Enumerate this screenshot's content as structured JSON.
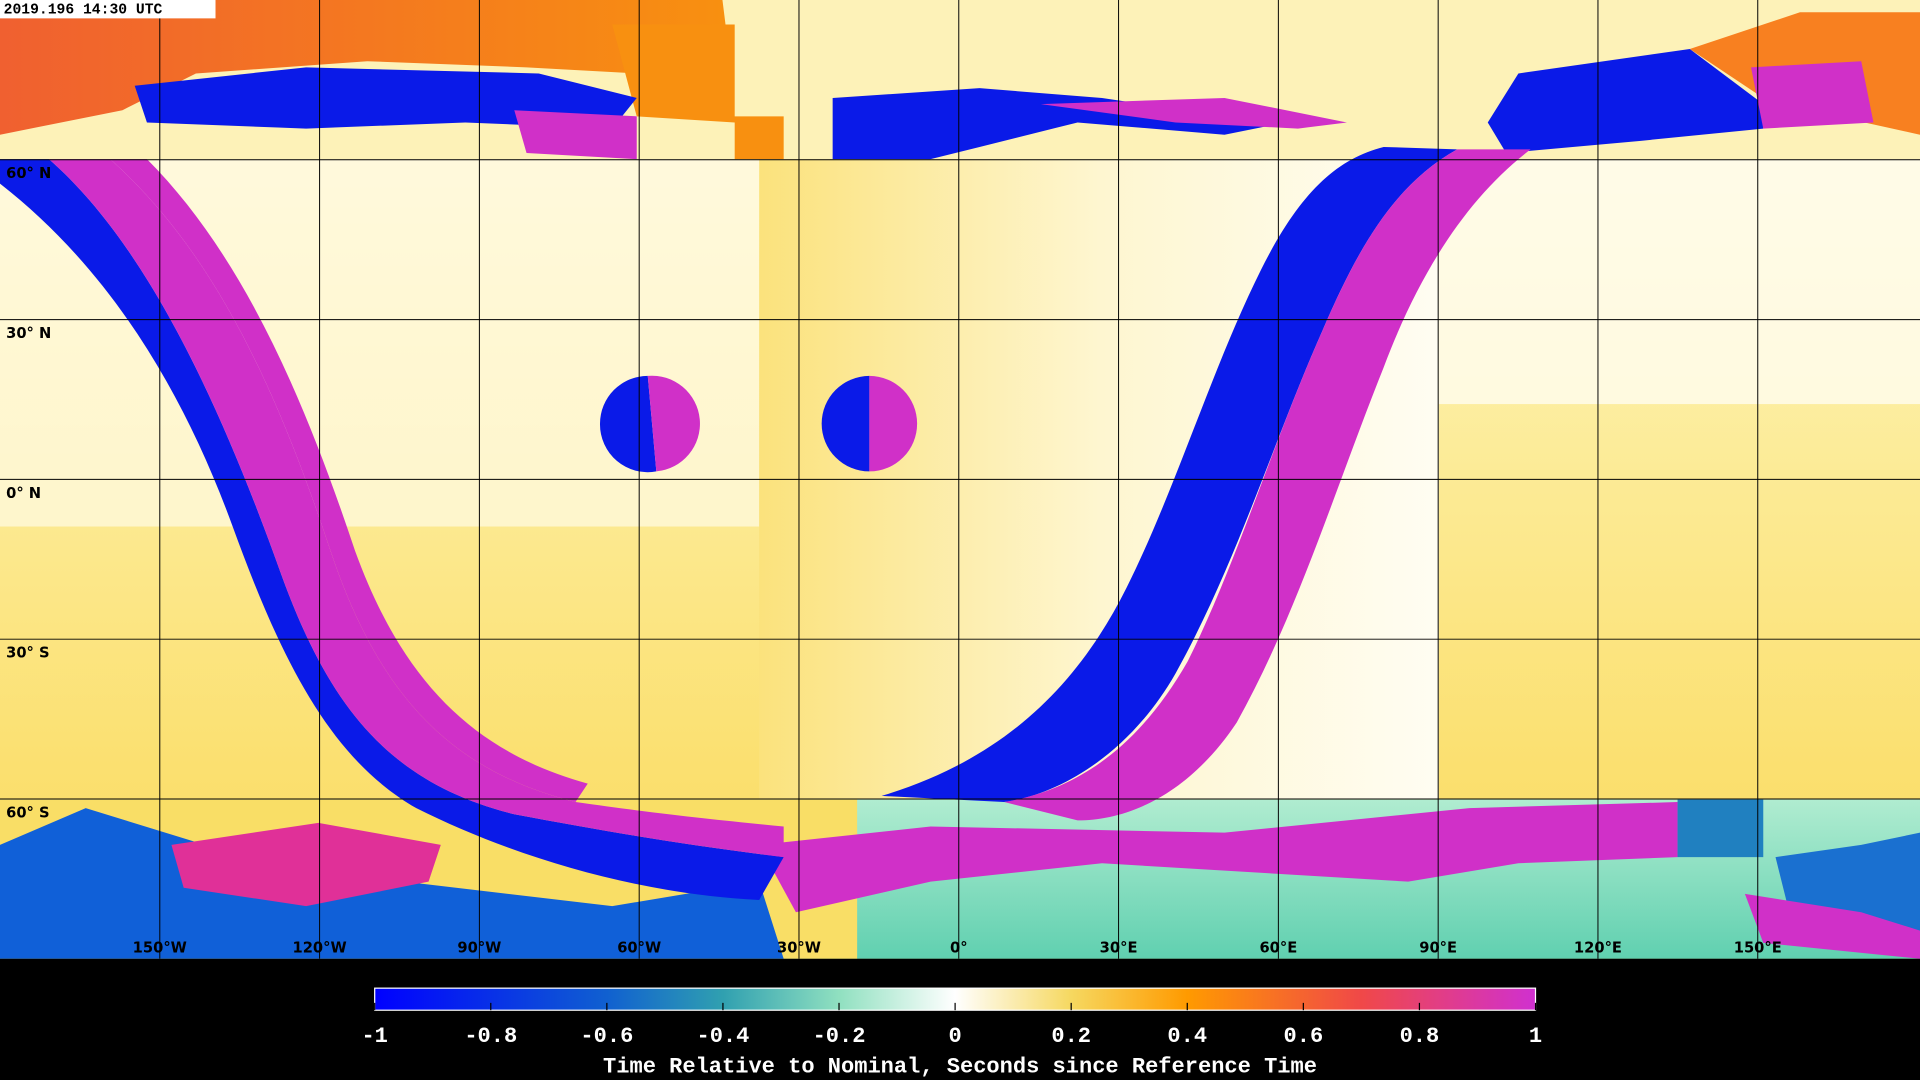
{
  "timestamp": "2019.196 14:30 UTC",
  "latitude_labels": [
    "60° N",
    "30° N",
    "0° N",
    "30° S",
    "60° S"
  ],
  "longitude_labels": [
    "150°W",
    "120°W",
    "90°W",
    "60°W",
    "30°W",
    "0°",
    "30°E",
    "60°E",
    "90°E",
    "120°E",
    "150°E"
  ],
  "colorbar": {
    "lim": [
      -1,
      1
    ],
    "ticks": [
      -1,
      -0.8,
      -0.6,
      -0.4,
      -0.2,
      0,
      0.2,
      0.4,
      0.6,
      0.8,
      1
    ],
    "label": "Time Relative to Nominal, Seconds since Reference Time"
  }
}
